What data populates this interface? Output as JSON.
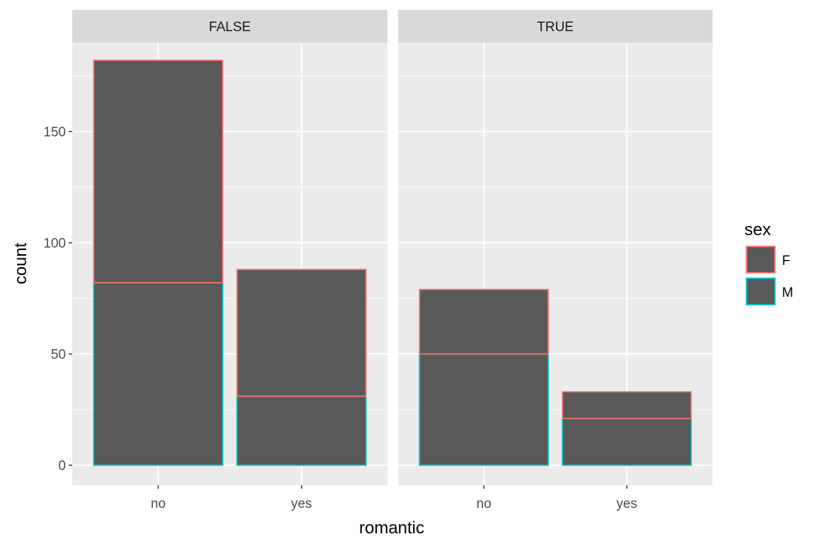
{
  "chart_data": {
    "type": "bar",
    "stacked": true,
    "xlabel": "romantic",
    "ylabel": "count",
    "ylim": [
      -9,
      190
    ],
    "yticks": [
      0,
      50,
      100,
      150
    ],
    "categories": [
      "no",
      "yes"
    ],
    "facets": [
      {
        "label": "FALSE",
        "series": [
          {
            "name": "F",
            "values": [
              100,
              57
            ]
          },
          {
            "name": "M",
            "values": [
              82,
              31
            ]
          }
        ]
      },
      {
        "label": "TRUE",
        "series": [
          {
            "name": "F",
            "values": [
              29,
              12
            ]
          },
          {
            "name": "M",
            "values": [
              50,
              21
            ]
          }
        ]
      }
    ],
    "legend": {
      "title": "sex",
      "position": "right",
      "entries": [
        {
          "name": "F",
          "color": "#F8766D"
        },
        {
          "name": "M",
          "color": "#00BFC4"
        }
      ]
    },
    "bar_fill": "#595959",
    "panel_background": "#EBEBEB",
    "strip_background": "#D9D9D9",
    "grid": true
  }
}
